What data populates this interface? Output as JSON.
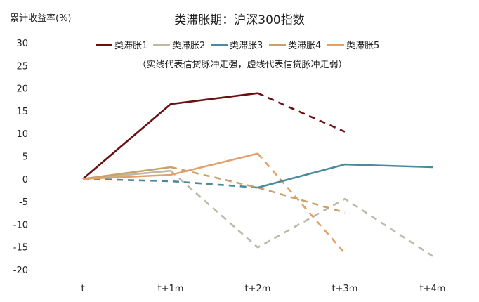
{
  "chart_data": {
    "type": "line",
    "title": "类滞胀期：沪深300指数",
    "ylabel": "累计收益率(%)",
    "xlabel": "",
    "note": "（实线代表信贷脉冲走强，虚线代表信贷脉冲走弱）",
    "categories": [
      "t",
      "t+1m",
      "t+2m",
      "t+3m",
      "t+4m"
    ],
    "ylim": [
      -20,
      30
    ],
    "yticks": [
      30,
      25,
      20,
      15,
      10,
      5,
      0,
      -5,
      -10,
      -15,
      -20
    ],
    "grid": false,
    "legend_position": "top-center",
    "series": [
      {
        "name": "类滞胀1",
        "color": "#6b0f12",
        "solid": [
          0,
          16.5,
          18.9,
          null,
          null
        ],
        "dashed": [
          null,
          null,
          18.9,
          10.4,
          null
        ]
      },
      {
        "name": "类滞胀2",
        "color": "#bdb9a8",
        "solid": [
          0,
          1.8,
          null,
          null,
          null
        ],
        "dashed": [
          null,
          1.8,
          -15.1,
          -4.4,
          -17.0
        ]
      },
      {
        "name": "类滞胀3",
        "color": "#4a8a9a",
        "solid": [
          null,
          null,
          -1.9,
          3.2,
          2.6
        ],
        "dashed": [
          0,
          -0.5,
          -1.9,
          null,
          null
        ]
      },
      {
        "name": "类滞胀4",
        "color": "#c9a26a",
        "solid": [
          0,
          2.6,
          null,
          null,
          null
        ],
        "dashed": [
          null,
          2.6,
          -1.9,
          -7.4,
          null
        ]
      },
      {
        "name": "类滞胀5",
        "color": "#e3a06a",
        "solid": [
          0,
          0.9,
          5.6,
          null,
          null
        ],
        "dashed": [
          null,
          null,
          5.6,
          -16.4,
          null
        ]
      }
    ]
  }
}
